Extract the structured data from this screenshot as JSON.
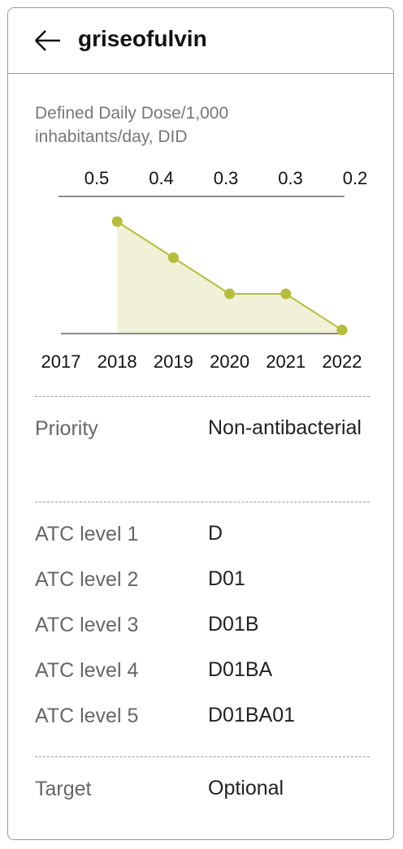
{
  "header": {
    "title": "griseofulvin"
  },
  "chart_data": {
    "type": "line",
    "title": "Defined Daily Dose/1,000 inhabitants/day, DID",
    "categories": [
      "2017",
      "2018",
      "2019",
      "2020",
      "2021",
      "2022"
    ],
    "values": [
      null,
      0.5,
      0.4,
      0.3,
      0.3,
      0.2
    ],
    "color": "#b5bd3a",
    "ylim": [
      0.19,
      0.5
    ]
  },
  "details": [
    {
      "rows": [
        {
          "label": "Priority",
          "value": "Non-antibacterial"
        }
      ]
    },
    {
      "rows": [
        {
          "label": "ATC level 1",
          "value": "D"
        },
        {
          "label": "ATC level 2",
          "value": "D01"
        },
        {
          "label": "ATC level 3",
          "value": "D01B"
        },
        {
          "label": "ATC level 4",
          "value": "D01BA"
        },
        {
          "label": "ATC level 5",
          "value": "D01BA01"
        }
      ]
    },
    {
      "rows": [
        {
          "label": "Target",
          "value": "Optional"
        }
      ]
    }
  ]
}
